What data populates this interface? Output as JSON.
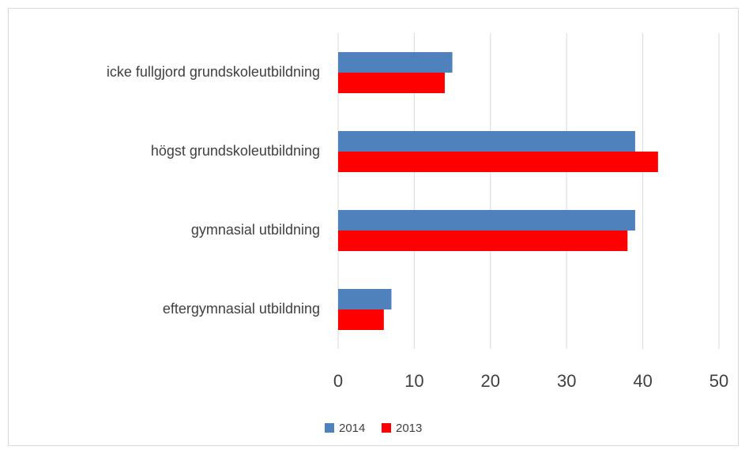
{
  "chart_data": {
    "type": "hbar",
    "categories": [
      "icke fullgjord grundskoleutbildning",
      "högst grundskoleutbildning",
      "gymnasial utbildning",
      "eftergymnasial utbildning"
    ],
    "series": [
      {
        "name": "2014",
        "color": "#4f81bd",
        "values": [
          15,
          39,
          39,
          7
        ]
      },
      {
        "name": "2013",
        "color": "#ff0000",
        "values": [
          14,
          42,
          38,
          6
        ]
      }
    ],
    "xlim": [
      0,
      50
    ],
    "xticks": [
      0,
      10,
      20,
      30,
      40,
      50
    ],
    "grid": true,
    "legend": "bottom"
  }
}
